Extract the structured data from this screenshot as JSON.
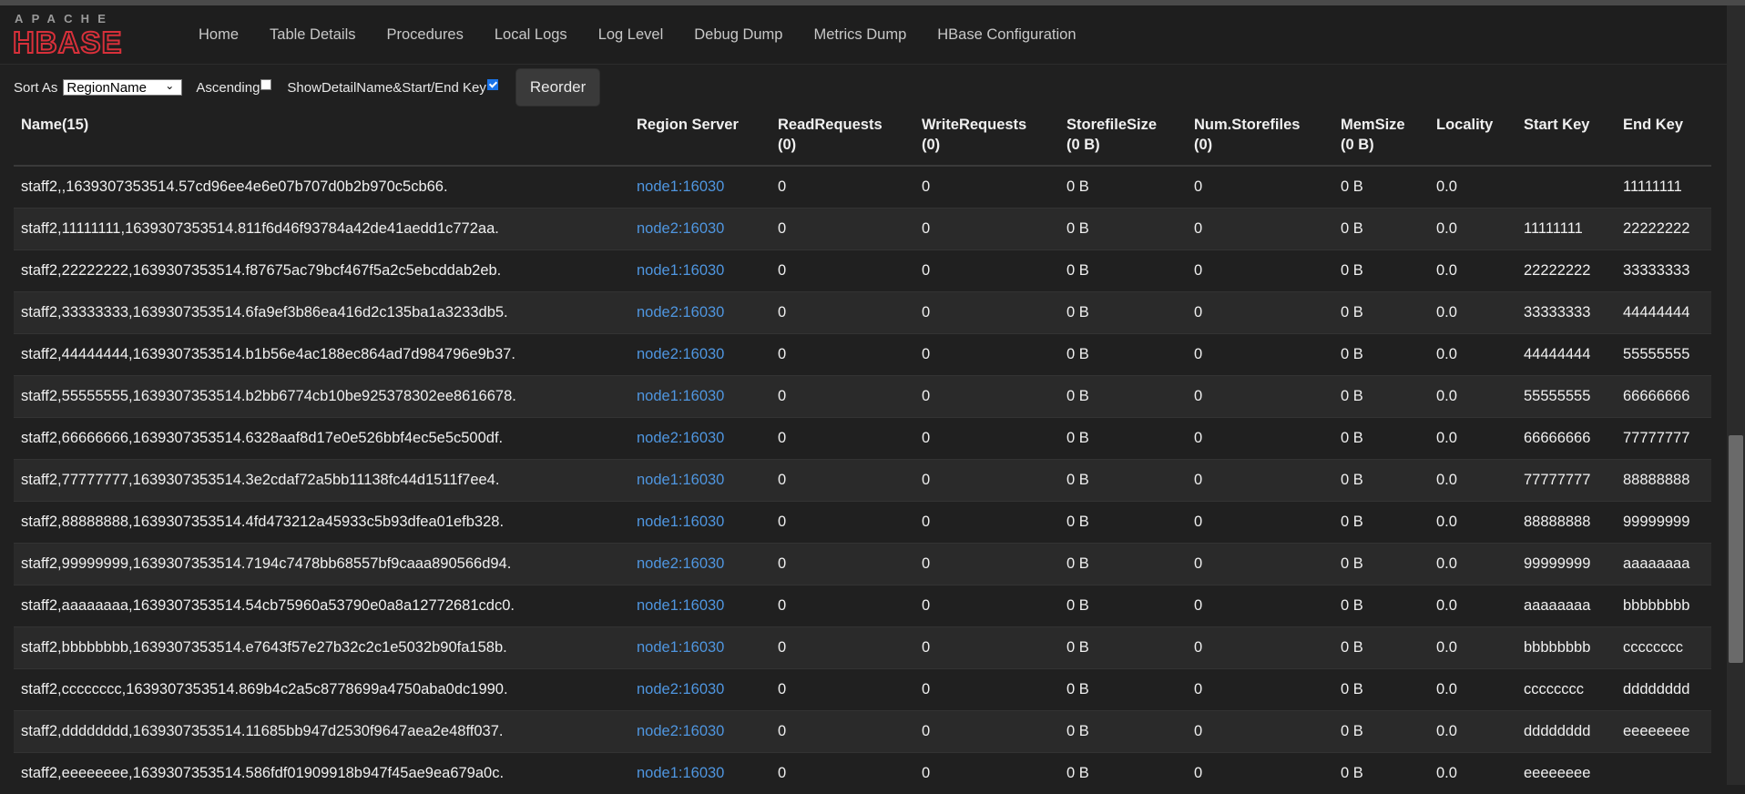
{
  "logo": {
    "apache": "APACHE",
    "hbase": "HBASE"
  },
  "nav": [
    {
      "label": "Home"
    },
    {
      "label": "Table Details"
    },
    {
      "label": "Procedures"
    },
    {
      "label": "Local Logs"
    },
    {
      "label": "Log Level"
    },
    {
      "label": "Debug Dump"
    },
    {
      "label": "Metrics Dump"
    },
    {
      "label": "HBase Configuration"
    }
  ],
  "toolbar": {
    "sort_label": "Sort As",
    "sort_value": "RegionName",
    "ascending_label": "Ascending",
    "ascending_checked": false,
    "detail_label": "ShowDetailName&Start/End Key",
    "detail_checked": true,
    "reorder_label": "Reorder"
  },
  "table": {
    "headers": [
      {
        "line1": "Name(15)",
        "line2": ""
      },
      {
        "line1": "Region Server",
        "line2": ""
      },
      {
        "line1": "ReadRequests",
        "line2": "(0)"
      },
      {
        "line1": "WriteRequests",
        "line2": "(0)"
      },
      {
        "line1": "StorefileSize",
        "line2": "(0 B)"
      },
      {
        "line1": "Num.Storefiles",
        "line2": "(0)"
      },
      {
        "line1": "MemSize",
        "line2": "(0 B)"
      },
      {
        "line1": "Locality",
        "line2": ""
      },
      {
        "line1": "Start Key",
        "line2": ""
      },
      {
        "line1": "End Key",
        "line2": ""
      }
    ],
    "rows": [
      {
        "name": "staff2,,1639307353514.57cd96ee4e6e07b707d0b2b970c5cb66.",
        "server": "node1:16030",
        "read": "0",
        "write": "0",
        "sfsize": "0 B",
        "nsf": "0",
        "mem": "0 B",
        "loc": "0.0",
        "start": "",
        "end": "11111111"
      },
      {
        "name": "staff2,11111111,1639307353514.811f6d46f93784a42de41aedd1c772aa.",
        "server": "node2:16030",
        "read": "0",
        "write": "0",
        "sfsize": "0 B",
        "nsf": "0",
        "mem": "0 B",
        "loc": "0.0",
        "start": "11111111",
        "end": "22222222"
      },
      {
        "name": "staff2,22222222,1639307353514.f87675ac79bcf467f5a2c5ebcddab2eb.",
        "server": "node1:16030",
        "read": "0",
        "write": "0",
        "sfsize": "0 B",
        "nsf": "0",
        "mem": "0 B",
        "loc": "0.0",
        "start": "22222222",
        "end": "33333333"
      },
      {
        "name": "staff2,33333333,1639307353514.6fa9ef3b86ea416d2c135ba1a3233db5.",
        "server": "node2:16030",
        "read": "0",
        "write": "0",
        "sfsize": "0 B",
        "nsf": "0",
        "mem": "0 B",
        "loc": "0.0",
        "start": "33333333",
        "end": "44444444"
      },
      {
        "name": "staff2,44444444,1639307353514.b1b56e4ac188ec864ad7d984796e9b37.",
        "server": "node2:16030",
        "read": "0",
        "write": "0",
        "sfsize": "0 B",
        "nsf": "0",
        "mem": "0 B",
        "loc": "0.0",
        "start": "44444444",
        "end": "55555555"
      },
      {
        "name": "staff2,55555555,1639307353514.b2bb6774cb10be925378302ee8616678.",
        "server": "node1:16030",
        "read": "0",
        "write": "0",
        "sfsize": "0 B",
        "nsf": "0",
        "mem": "0 B",
        "loc": "0.0",
        "start": "55555555",
        "end": "66666666"
      },
      {
        "name": "staff2,66666666,1639307353514.6328aaf8d17e0e526bbf4ec5e5c500df.",
        "server": "node2:16030",
        "read": "0",
        "write": "0",
        "sfsize": "0 B",
        "nsf": "0",
        "mem": "0 B",
        "loc": "0.0",
        "start": "66666666",
        "end": "77777777"
      },
      {
        "name": "staff2,77777777,1639307353514.3e2cdaf72a5bb11138fc44d1511f7ee4.",
        "server": "node1:16030",
        "read": "0",
        "write": "0",
        "sfsize": "0 B",
        "nsf": "0",
        "mem": "0 B",
        "loc": "0.0",
        "start": "77777777",
        "end": "88888888"
      },
      {
        "name": "staff2,88888888,1639307353514.4fd473212a45933c5b93dfea01efb328.",
        "server": "node1:16030",
        "read": "0",
        "write": "0",
        "sfsize": "0 B",
        "nsf": "0",
        "mem": "0 B",
        "loc": "0.0",
        "start": "88888888",
        "end": "99999999"
      },
      {
        "name": "staff2,99999999,1639307353514.7194c7478bb68557bf9caaa890566d94.",
        "server": "node2:16030",
        "read": "0",
        "write": "0",
        "sfsize": "0 B",
        "nsf": "0",
        "mem": "0 B",
        "loc": "0.0",
        "start": "99999999",
        "end": "aaaaaaaa"
      },
      {
        "name": "staff2,aaaaaaaa,1639307353514.54cb75960a53790e0a8a12772681cdc0.",
        "server": "node1:16030",
        "read": "0",
        "write": "0",
        "sfsize": "0 B",
        "nsf": "0",
        "mem": "0 B",
        "loc": "0.0",
        "start": "aaaaaaaa",
        "end": "bbbbbbbb"
      },
      {
        "name": "staff2,bbbbbbbb,1639307353514.e7643f57e27b32c2c1e5032b90fa158b.",
        "server": "node1:16030",
        "read": "0",
        "write": "0",
        "sfsize": "0 B",
        "nsf": "0",
        "mem": "0 B",
        "loc": "0.0",
        "start": "bbbbbbbb",
        "end": "cccccccc"
      },
      {
        "name": "staff2,cccccccc,1639307353514.869b4c2a5c8778699a4750aba0dc1990.",
        "server": "node2:16030",
        "read": "0",
        "write": "0",
        "sfsize": "0 B",
        "nsf": "0",
        "mem": "0 B",
        "loc": "0.0",
        "start": "cccccccc",
        "end": "dddddddd"
      },
      {
        "name": "staff2,dddddddd,1639307353514.11685bb947d2530f9647aea2e48ff037.",
        "server": "node2:16030",
        "read": "0",
        "write": "0",
        "sfsize": "0 B",
        "nsf": "0",
        "mem": "0 B",
        "loc": "0.0",
        "start": "dddddddd",
        "end": "eeeeeeee"
      },
      {
        "name": "staff2,eeeeeeee,1639307353514.586fdf01909918b947f45ae9ea679a0c.",
        "server": "node1:16030",
        "read": "0",
        "write": "0",
        "sfsize": "0 B",
        "nsf": "0",
        "mem": "0 B",
        "loc": "0.0",
        "start": "eeeeeeee",
        "end": ""
      }
    ]
  },
  "colors": {
    "background": "#202020",
    "link": "#4f96e0",
    "logo_red": "#d8303a"
  }
}
